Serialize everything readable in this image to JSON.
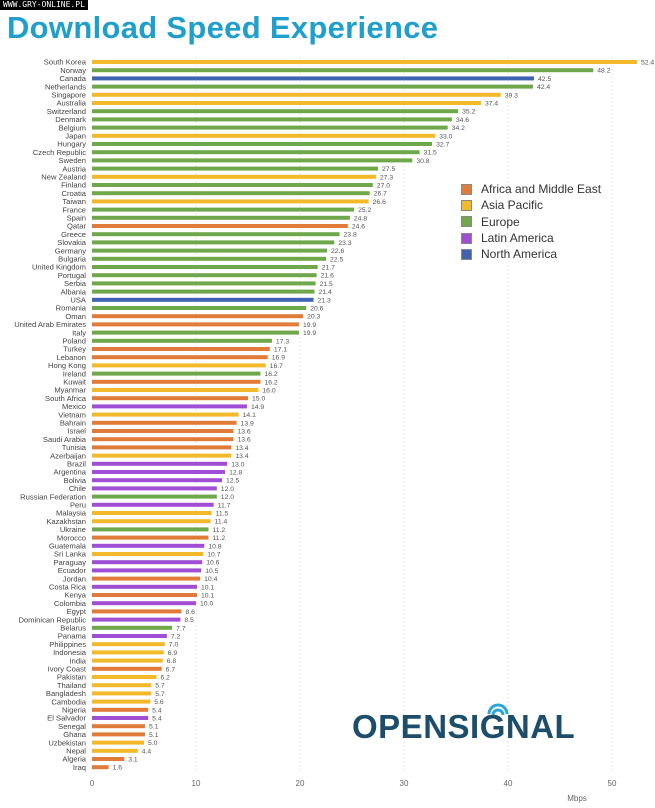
{
  "watermark": "WWW.GRY-ONLINE.PL",
  "title": "Download Speed Experience",
  "logo_text": "OPENSIGNAL",
  "colors": {
    "Africa and Middle East": "#e07b39",
    "Asia Pacific": "#f2b92a",
    "Europe": "#6fa84a",
    "Latin America": "#a04fd4",
    "North America": "#3f63b3"
  },
  "chart_data": {
    "type": "bar",
    "orientation": "horizontal",
    "title": "Download Speed Experience",
    "xlabel": "Mbps",
    "ylabel": "",
    "xlim": [
      0,
      52.5
    ],
    "xticks": [
      0,
      10,
      20,
      30,
      40,
      50
    ],
    "grid": true,
    "legend_position": "right-top",
    "legend": [
      "Africa and Middle East",
      "Asia Pacific",
      "Europe",
      "Latin America",
      "North America"
    ],
    "categories": [
      "South Korea",
      "Norway",
      "Canada",
      "Netherlands",
      "Singapore",
      "Australia",
      "Switzerland",
      "Denmark",
      "Belgium",
      "Japan",
      "Hungary",
      "Czech Republic",
      "Sweden",
      "Austria",
      "New Zealand",
      "Finland",
      "Croatia",
      "Taiwan",
      "France",
      "Spain",
      "Qatar",
      "Greece",
      "Slovakia",
      "Germany",
      "Bulgaria",
      "United Kingdom",
      "Portugal",
      "Serbia",
      "Albania",
      "USA",
      "Romania",
      "Oman",
      "United Arab Emirates",
      "Italy",
      "Poland",
      "Turkey",
      "Lebanon",
      "Hong Kong",
      "Ireland",
      "Kuwait",
      "Myanmar",
      "South Africa",
      "Mexico",
      "Vietnam",
      "Bahrain",
      "Israel",
      "Saudi Arabia",
      "Tunisia",
      "Azerbaijan",
      "Brazil",
      "Argentina",
      "Bolivia",
      "Chile",
      "Russian Federation",
      "Peru",
      "Malaysia",
      "Kazakhstan",
      "Ukraine",
      "Morocco",
      "Guatemala",
      "Sri Lanka",
      "Paraguay",
      "Ecuador",
      "Jordan",
      "Costa Rica",
      "Kenya",
      "Colombia",
      "Egypt",
      "Dominican Republic",
      "Belarus",
      "Panama",
      "Philippines",
      "Indonesia",
      "India",
      "Ivory Coast",
      "Pakistan",
      "Thailand",
      "Bangladesh",
      "Cambodia",
      "Nigeria",
      "El Salvador",
      "Senegal",
      "Ghana",
      "Uzbekistan",
      "Nepal",
      "Algeria",
      "Iraq"
    ],
    "values": [
      52.4,
      48.2,
      42.5,
      42.4,
      39.3,
      37.4,
      35.2,
      34.6,
      34.2,
      33.0,
      32.7,
      31.5,
      30.8,
      27.5,
      27.3,
      27.0,
      26.7,
      26.6,
      25.2,
      24.8,
      24.6,
      23.8,
      23.3,
      22.6,
      22.5,
      21.7,
      21.6,
      21.5,
      21.4,
      21.3,
      20.6,
      20.3,
      19.9,
      19.9,
      17.3,
      17.1,
      16.9,
      16.7,
      16.2,
      16.2,
      16.0,
      15.0,
      14.9,
      14.1,
      13.9,
      13.6,
      13.6,
      13.4,
      13.4,
      13.0,
      12.8,
      12.5,
      12.0,
      12.0,
      11.7,
      11.5,
      11.4,
      11.2,
      11.2,
      10.8,
      10.7,
      10.6,
      10.5,
      10.4,
      10.1,
      10.1,
      10.0,
      8.6,
      8.5,
      7.7,
      7.2,
      7.0,
      6.9,
      6.8,
      6.7,
      6.2,
      5.7,
      5.7,
      5.6,
      5.4,
      5.4,
      5.1,
      5.1,
      5.0,
      4.4,
      3.1,
      1.6
    ],
    "regions": [
      "Asia Pacific",
      "Europe",
      "North America",
      "Europe",
      "Asia Pacific",
      "Asia Pacific",
      "Europe",
      "Europe",
      "Europe",
      "Asia Pacific",
      "Europe",
      "Europe",
      "Europe",
      "Europe",
      "Asia Pacific",
      "Europe",
      "Europe",
      "Asia Pacific",
      "Europe",
      "Europe",
      "Africa and Middle East",
      "Europe",
      "Europe",
      "Europe",
      "Europe",
      "Europe",
      "Europe",
      "Europe",
      "Europe",
      "North America",
      "Europe",
      "Africa and Middle East",
      "Africa and Middle East",
      "Europe",
      "Europe",
      "Africa and Middle East",
      "Africa and Middle East",
      "Asia Pacific",
      "Europe",
      "Africa and Middle East",
      "Asia Pacific",
      "Africa and Middle East",
      "Latin America",
      "Asia Pacific",
      "Africa and Middle East",
      "Africa and Middle East",
      "Africa and Middle East",
      "Africa and Middle East",
      "Asia Pacific",
      "Latin America",
      "Latin America",
      "Latin America",
      "Latin America",
      "Europe",
      "Latin America",
      "Asia Pacific",
      "Asia Pacific",
      "Europe",
      "Africa and Middle East",
      "Latin America",
      "Asia Pacific",
      "Latin America",
      "Latin America",
      "Africa and Middle East",
      "Latin America",
      "Africa and Middle East",
      "Latin America",
      "Africa and Middle East",
      "Latin America",
      "Europe",
      "Latin America",
      "Asia Pacific",
      "Asia Pacific",
      "Asia Pacific",
      "Africa and Middle East",
      "Asia Pacific",
      "Asia Pacific",
      "Asia Pacific",
      "Asia Pacific",
      "Africa and Middle East",
      "Latin America",
      "Africa and Middle East",
      "Africa and Middle East",
      "Asia Pacific",
      "Asia Pacific",
      "Africa and Middle East",
      "Africa and Middle East"
    ]
  }
}
